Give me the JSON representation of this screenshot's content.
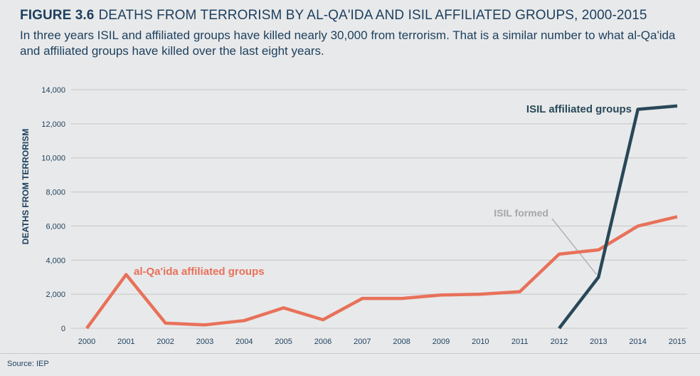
{
  "header": {
    "figure_number": "FIGURE 3.6",
    "title": "DEATHS FROM TERRORISM BY AL-QA'IDA AND ISIL AFFILIATED GROUPS, 2000-2015",
    "subtitle": "In three years ISIL and affiliated groups have killed nearly 30,000 from terrorism. That is a similar number to what al-Qa'ida and affiliated groups have killed over the last eight years."
  },
  "source": "Source: IEP",
  "chart_data": {
    "type": "line",
    "title": "DEATHS FROM TERRORISM BY AL-QA'IDA AND ISIL AFFILIATED GROUPS, 2000-2015",
    "xlabel": "",
    "ylabel": "DEATHS FROM TERRORISM",
    "ylim": [
      0,
      14000
    ],
    "yticks": [
      0,
      2000,
      4000,
      6000,
      8000,
      10000,
      12000,
      14000
    ],
    "ytick_labels": [
      "0",
      "2,000",
      "4,000",
      "6,000",
      "8,000",
      "10,000",
      "12,000",
      "14,000"
    ],
    "x": [
      "2000",
      "2001",
      "2002",
      "2003",
      "2004",
      "2005",
      "2006",
      "2007",
      "2008",
      "2009",
      "2010",
      "2011",
      "2012",
      "2013",
      "2014",
      "2015"
    ],
    "grid": "horizontal",
    "series": [
      {
        "name": "al-Qa'ida affiliated groups",
        "color": "#e8715a",
        "x": [
          "2000",
          "2001",
          "2002",
          "2003",
          "2004",
          "2005",
          "2006",
          "2007",
          "2008",
          "2009",
          "2010",
          "2011",
          "2012",
          "2013",
          "2014",
          "2015"
        ],
        "values": [
          0,
          3150,
          300,
          200,
          450,
          1200,
          500,
          1750,
          1750,
          1950,
          2000,
          2150,
          4350,
          4600,
          6000,
          6550
        ]
      },
      {
        "name": "ISIL affiliated groups",
        "color": "#284858",
        "x": [
          "2012",
          "2013",
          "2014",
          "2015"
        ],
        "values": [
          0,
          3000,
          12850,
          13050
        ]
      }
    ],
    "annotations": [
      {
        "text": "ISIL formed",
        "points_to": "2013"
      }
    ]
  }
}
